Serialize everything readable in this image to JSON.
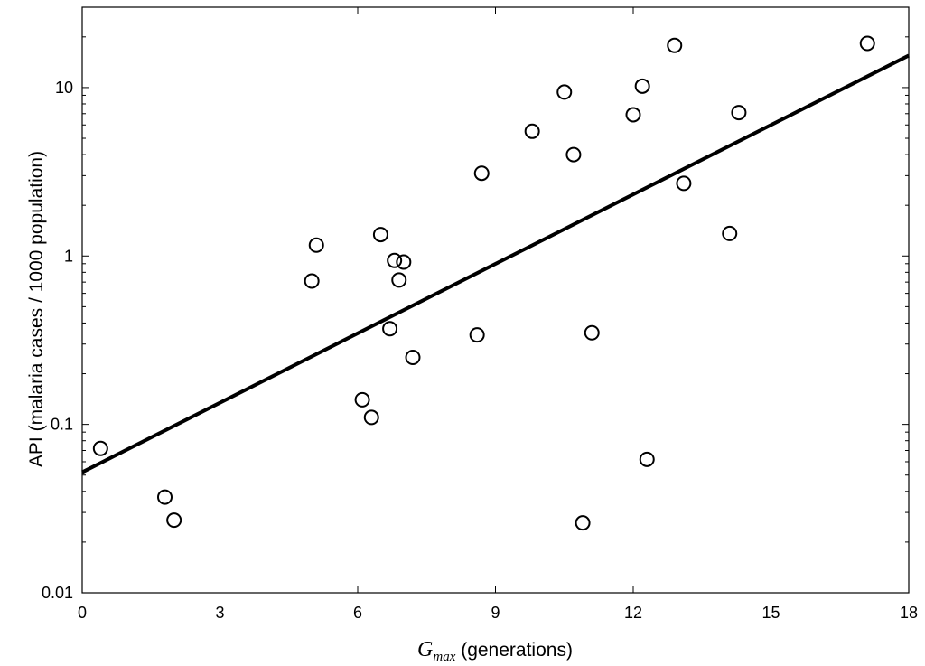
{
  "chart_data": {
    "type": "scatter",
    "title": "",
    "xlabel_symbol": "G",
    "xlabel_subscript": "max",
    "xlabel_rest": " (generations)",
    "ylabel": "API (malaria cases / 1000 population)",
    "xlim": [
      0,
      18
    ],
    "ylim": [
      0.01,
      30
    ],
    "yscale": "log",
    "xticks": [
      0,
      3,
      6,
      9,
      12,
      15,
      18
    ],
    "xtick_labels": [
      "0",
      "3",
      "6",
      "9",
      "12",
      "15",
      "18"
    ],
    "yticks": [
      0.01,
      0.1,
      1,
      10
    ],
    "ytick_labels": [
      "0.01",
      "0.1",
      "1",
      "10"
    ],
    "grid": false,
    "legend": "none",
    "marker": "open-circle",
    "points": [
      {
        "x": 0.4,
        "y": 0.072
      },
      {
        "x": 1.8,
        "y": 0.037
      },
      {
        "x": 2.0,
        "y": 0.027
      },
      {
        "x": 5.0,
        "y": 0.71
      },
      {
        "x": 5.1,
        "y": 1.16
      },
      {
        "x": 6.1,
        "y": 0.14
      },
      {
        "x": 6.3,
        "y": 0.11
      },
      {
        "x": 6.5,
        "y": 1.34
      },
      {
        "x": 6.7,
        "y": 0.37
      },
      {
        "x": 6.8,
        "y": 0.94
      },
      {
        "x": 6.9,
        "y": 0.72
      },
      {
        "x": 7.0,
        "y": 0.92
      },
      {
        "x": 7.2,
        "y": 0.25
      },
      {
        "x": 8.6,
        "y": 0.34
      },
      {
        "x": 8.7,
        "y": 3.1
      },
      {
        "x": 9.8,
        "y": 5.5
      },
      {
        "x": 10.5,
        "y": 9.4
      },
      {
        "x": 10.7,
        "y": 4.0
      },
      {
        "x": 10.9,
        "y": 0.026
      },
      {
        "x": 11.1,
        "y": 0.35
      },
      {
        "x": 12.0,
        "y": 6.9
      },
      {
        "x": 12.2,
        "y": 10.2
      },
      {
        "x": 12.3,
        "y": 0.062
      },
      {
        "x": 12.9,
        "y": 17.8
      },
      {
        "x": 13.1,
        "y": 2.7
      },
      {
        "x": 14.1,
        "y": 1.36
      },
      {
        "x": 14.3,
        "y": 7.1
      },
      {
        "x": 17.1,
        "y": 18.3
      }
    ],
    "fit_line": {
      "x": [
        0,
        18
      ],
      "y": [
        0.052,
        15.5
      ]
    }
  }
}
